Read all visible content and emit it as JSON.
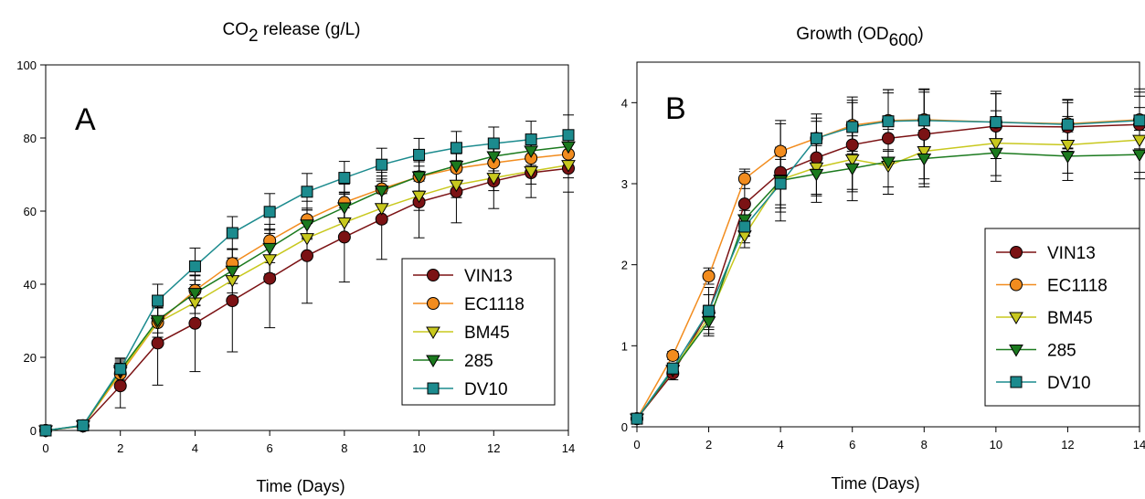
{
  "chart_data": [
    {
      "type": "line",
      "panel_letter": "A",
      "title_main": "CO",
      "title_sub": "2",
      "title_rest": "release (g/L)",
      "xlabel": "Time (Days)",
      "ylabel": "",
      "xlim": [
        0,
        14
      ],
      "ylim": [
        0,
        100
      ],
      "xticks": [
        0,
        2,
        4,
        6,
        8,
        10,
        12,
        14
      ],
      "yticks": [
        0,
        20,
        40,
        60,
        80,
        100
      ],
      "grid": false,
      "legend_position": "right",
      "x": [
        0,
        1,
        2,
        3,
        4,
        5,
        6,
        7,
        8,
        9,
        10,
        11,
        12,
        13,
        14
      ],
      "series": [
        {
          "name": "VIN13",
          "color": "#7b1214",
          "marker": "circle",
          "values": [
            0,
            1.2,
            12.2,
            23.9,
            29.3,
            35.5,
            41.6,
            47.8,
            52.9,
            57.8,
            62.5,
            65.3,
            68.2,
            70.5,
            71.7
          ],
          "errors": [
            0,
            0.5,
            6,
            11.5,
            13.2,
            14,
            13.5,
            13,
            12.3,
            11,
            9.8,
            8.5,
            7.5,
            6.8,
            6.5
          ]
        },
        {
          "name": "EC1118",
          "color": "#f28c1e",
          "marker": "circle",
          "values": [
            0,
            1.3,
            15.5,
            29.5,
            38.3,
            45.7,
            51.9,
            57.7,
            62.4,
            66.1,
            69.4,
            71.7,
            73.2,
            74.5,
            75.6
          ],
          "errors": [
            0,
            0.5,
            3,
            4,
            4,
            4,
            4.5,
            5,
            5,
            4.5,
            4.5,
            4,
            4,
            4,
            4
          ]
        },
        {
          "name": "BM45",
          "color": "#c8c81e",
          "marker": "triangle-down",
          "values": [
            0,
            1.3,
            16,
            29.5,
            35,
            41.1,
            46.8,
            52.6,
            56.9,
            60.8,
            64.2,
            67.2,
            69.1,
            70.9,
            72.6
          ],
          "errors": [
            0,
            0.5,
            3,
            4,
            3,
            3.5,
            4,
            4,
            4,
            4,
            4,
            3.5,
            3.5,
            3.5,
            3.5
          ]
        },
        {
          "name": "285",
          "color": "#1b7a1e",
          "marker": "triangle-down",
          "values": [
            0,
            1.3,
            16.5,
            30.2,
            37.6,
            43.7,
            49.9,
            56.3,
            61,
            65.6,
            69.5,
            72.4,
            75,
            76.5,
            77.7
          ],
          "errors": [
            0,
            0.5,
            3,
            3.5,
            3.5,
            3.5,
            4,
            4,
            4,
            4,
            4,
            4,
            4,
            4,
            4
          ]
        },
        {
          "name": "DV10",
          "color": "#1c8b8e",
          "marker": "square",
          "values": [
            0,
            1.4,
            16.8,
            35.5,
            44.9,
            54,
            59.8,
            65.3,
            69.1,
            72.7,
            75.4,
            77.3,
            78.5,
            79.6,
            80.8
          ],
          "errors": [
            0,
            0.5,
            3,
            4.5,
            5,
            4.5,
            5,
            5,
            4.5,
            4.5,
            4.5,
            4.5,
            4.5,
            5,
            5.5
          ]
        }
      ]
    },
    {
      "type": "line",
      "panel_letter": "B",
      "title_main": "Growth (OD",
      "title_sub": "600",
      "title_rest": ")",
      "xlabel": "Time (Days)",
      "ylabel": "",
      "xlim": [
        0,
        14
      ],
      "ylim": [
        0,
        4.5
      ],
      "xticks": [
        0,
        2,
        4,
        6,
        8,
        10,
        12,
        14
      ],
      "yticks": [
        0,
        1,
        2,
        3,
        4
      ],
      "grid": false,
      "legend_position": "right",
      "x": [
        0,
        1,
        2,
        3,
        4,
        5,
        6,
        7,
        8,
        10,
        12,
        14
      ],
      "series": [
        {
          "name": "VIN13",
          "color": "#7b1214",
          "marker": "circle",
          "values": [
            0.1,
            0.66,
            1.42,
            2.75,
            3.14,
            3.32,
            3.48,
            3.56,
            3.61,
            3.71,
            3.7,
            3.73
          ],
          "errors": [
            0,
            0.08,
            0.3,
            0.4,
            0.6,
            0.45,
            0.55,
            0.6,
            0.55,
            0.4,
            0.3,
            0.35
          ]
        },
        {
          "name": "EC1118",
          "color": "#f28c1e",
          "marker": "circle",
          "values": [
            0.1,
            0.88,
            1.86,
            3.06,
            3.4,
            3.56,
            3.72,
            3.78,
            3.79,
            3.76,
            3.74,
            3.79
          ],
          "errors": [
            0,
            0.05,
            0.1,
            0.12,
            0.38,
            0.3,
            0.35,
            0.38,
            0.38,
            0.38,
            0.3,
            0.38
          ]
        },
        {
          "name": "BM45",
          "color": "#c8c81e",
          "marker": "triangle-down",
          "values": [
            0.1,
            0.7,
            1.35,
            2.36,
            3.05,
            3.2,
            3.3,
            3.22,
            3.4,
            3.5,
            3.48,
            3.54
          ],
          "errors": [
            0,
            0.06,
            0.15,
            0.15,
            0.4,
            0.35,
            0.4,
            0.35,
            0.4,
            0.4,
            0.35,
            0.4
          ]
        },
        {
          "name": "285",
          "color": "#1b7a1e",
          "marker": "triangle-down",
          "values": [
            0.1,
            0.7,
            1.3,
            2.56,
            3.04,
            3.12,
            3.19,
            3.27,
            3.31,
            3.38,
            3.34,
            3.36
          ],
          "errors": [
            0,
            0.06,
            0.15,
            0.2,
            0.3,
            0.35,
            0.4,
            0.4,
            0.35,
            0.35,
            0.3,
            0.3
          ]
        },
        {
          "name": "DV10",
          "color": "#1c8b8e",
          "marker": "square",
          "values": [
            0.1,
            0.72,
            1.43,
            2.47,
            3,
            3.56,
            3.7,
            3.77,
            3.78,
            3.76,
            3.73,
            3.78
          ],
          "errors": [
            0,
            0.06,
            0.2,
            0.2,
            0.3,
            0.25,
            0.3,
            0.35,
            0.35,
            0.35,
            0.3,
            0.35
          ]
        }
      ]
    }
  ]
}
